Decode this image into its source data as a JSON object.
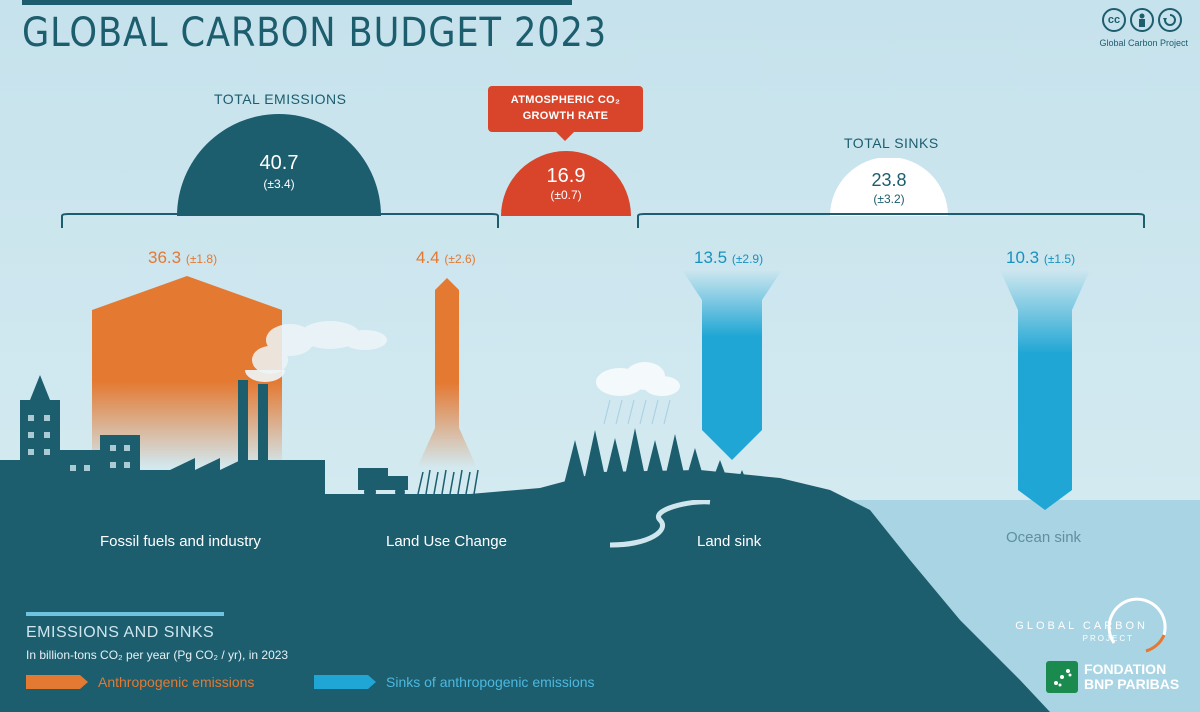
{
  "title": "GLOBAL CARBON BUDGET 2023",
  "license": {
    "icons": [
      "cc-icon",
      "attribution-icon",
      "sharealike-icon"
    ],
    "label": "Global Carbon Project",
    "cc": "cc"
  },
  "total_emissions": {
    "label": "TOTAL EMISSIONS",
    "value": "40.7",
    "uncertainty": "(±3.4)"
  },
  "atmospheric": {
    "label_line1": "ATMOSPHERIC CO₂",
    "label_line2": "GROWTH RATE",
    "value": "16.9",
    "uncertainty": "(±0.7)"
  },
  "total_sinks": {
    "label": "TOTAL SINKS",
    "value": "23.8",
    "uncertainty": "(±3.2)"
  },
  "fluxes": {
    "fossil": {
      "value": "36.3",
      "uncertainty": "(±1.8)",
      "label": "Fossil fuels and industry"
    },
    "land_use": {
      "value": "4.4",
      "uncertainty": "(±2.6)",
      "label": "Land Use Change"
    },
    "land_sink": {
      "value": "13.5",
      "uncertainty": "(±2.9)",
      "label": "Land sink"
    },
    "ocean_sink": {
      "value": "10.3",
      "uncertainty": "(±1.5)",
      "label": "Ocean sink"
    }
  },
  "legend": {
    "title": "EMISSIONS AND SINKS",
    "subtitle": "In billion-tons CO₂ per year (Pg CO₂ / yr), in 2023",
    "anthropogenic": "Anthropogenic emissions",
    "sinks": "Sinks of anthropogenic emissions"
  },
  "logos": {
    "gcp_line1": "GLOBAL CARBON",
    "gcp_line2": "PROJECT",
    "bnp_line1": "FONDATION",
    "bnp_line2": "BNP PARIBAS"
  },
  "colors": {
    "emissions": "#e47932",
    "sinks": "#1fa6d4",
    "atmosphere": "#d8452a",
    "land": "#1c5d6e",
    "sky": "#cfe6ee"
  }
}
